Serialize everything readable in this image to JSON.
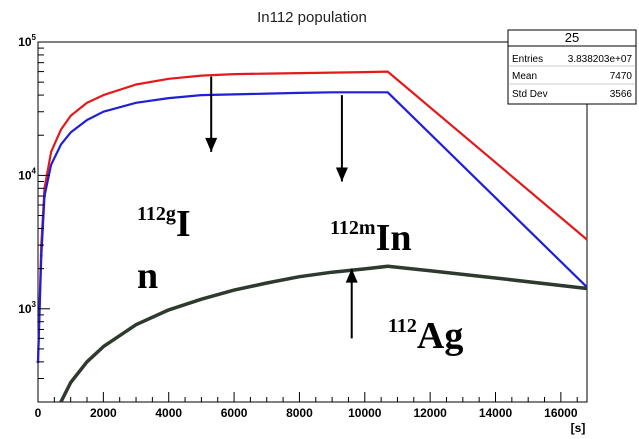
{
  "chart_data": {
    "type": "line",
    "title": "In112 population",
    "xlabel": "[s]",
    "ylabel": "",
    "x_scale": "linear",
    "y_scale": "log",
    "xlim": [
      0,
      16800
    ],
    "ylim": [
      200,
      100000
    ],
    "grid": false,
    "x_ticks": [
      0,
      2000,
      4000,
      6000,
      8000,
      10000,
      12000,
      14000,
      16000
    ],
    "x_tick_labels": [
      "0",
      "2000",
      "4000",
      "6000",
      "8000",
      "10000",
      "12000",
      "14000",
      "16000"
    ],
    "y_ticks": [
      1000,
      10000,
      100000
    ],
    "y_tick_labels": [
      {
        "base": "10",
        "exp": "3"
      },
      {
        "base": "10",
        "exp": "4"
      },
      {
        "base": "10",
        "exp": "5"
      }
    ],
    "series": [
      {
        "color": "#e31a1c",
        "x": [
          0,
          100,
          200,
          400,
          700,
          1000,
          1500,
          2000,
          3000,
          4000,
          5000,
          6000,
          7000,
          8000,
          9000,
          10000,
          10700,
          16800
        ],
        "y": [
          400,
          3000,
          8000,
          15000,
          22000,
          28000,
          35000,
          40000,
          48000,
          53000,
          56000,
          57500,
          58000,
          58500,
          59000,
          59500,
          60000,
          3300
        ]
      },
      {
        "color": "#1f1fd6",
        "x": [
          0,
          100,
          200,
          400,
          700,
          1000,
          1500,
          2000,
          3000,
          4000,
          5000,
          6000,
          7000,
          8000,
          9000,
          10000,
          10700,
          16800
        ],
        "y": [
          400,
          2500,
          7000,
          12000,
          17000,
          21000,
          26000,
          30000,
          35000,
          38000,
          40000,
          40500,
          41000,
          41500,
          42000,
          42000,
          42000,
          1450
        ]
      },
      {
        "color": "#2f3a2f",
        "x": [
          700,
          1000,
          1500,
          2000,
          3000,
          4000,
          5000,
          6000,
          7000,
          8000,
          9000,
          10000,
          10700,
          12000,
          14000,
          16800
        ],
        "y": [
          200,
          280,
          400,
          520,
          760,
          980,
          1180,
          1380,
          1560,
          1740,
          1880,
          1990,
          2080,
          1930,
          1700,
          1420
        ]
      }
    ],
    "stats_box": {
      "name": "25",
      "rows": [
        {
          "label": "Entries",
          "value": "3.838203e+07"
        },
        {
          "label": "Mean",
          "value": "7470"
        },
        {
          "label": "Std Dev",
          "value": "3566"
        }
      ]
    },
    "annotations": [
      {
        "sup": "112g",
        "main": "I",
        "line2": "n"
      },
      {
        "sup": "112m",
        "main": "In"
      },
      {
        "sup": "112",
        "main": "Ag"
      }
    ],
    "arrows": [
      {
        "x": 5300,
        "y_from": 55000,
        "y_to": 15000
      },
      {
        "x": 9300,
        "y_from": 40000,
        "y_to": 9000
      },
      {
        "x": 9600,
        "y_from": 600,
        "y_to": 2000
      }
    ]
  }
}
